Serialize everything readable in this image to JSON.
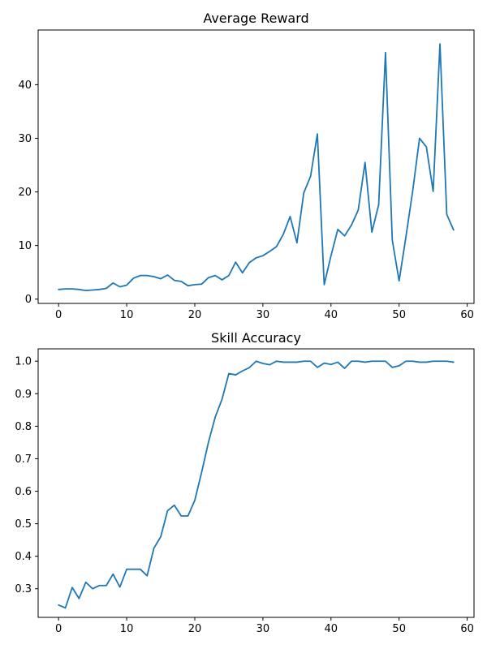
{
  "chart_data": [
    {
      "type": "line",
      "title": "Average Reward",
      "xlabel": "",
      "ylabel": "",
      "xlim": [
        -3,
        61
      ],
      "ylim": [
        -0.8,
        50.2
      ],
      "xticks": [
        0,
        10,
        20,
        30,
        40,
        50,
        60
      ],
      "yticks": [
        0,
        10,
        20,
        30,
        40
      ],
      "grid": false,
      "color": "#1f77b4",
      "x": [
        0,
        1,
        2,
        3,
        4,
        5,
        6,
        7,
        8,
        9,
        10,
        11,
        12,
        13,
        14,
        15,
        16,
        17,
        18,
        19,
        20,
        21,
        22,
        23,
        24,
        25,
        26,
        27,
        28,
        29,
        30,
        31,
        32,
        33,
        34,
        35,
        36,
        37,
        38,
        39,
        40,
        41,
        42,
        43,
        44,
        45,
        46,
        47,
        48,
        49,
        50,
        51,
        52,
        53,
        54,
        55,
        56,
        57,
        58
      ],
      "y": [
        1.8,
        1.9,
        1.9,
        1.8,
        1.6,
        1.7,
        1.8,
        2.0,
        3.0,
        2.3,
        2.6,
        3.9,
        4.4,
        4.4,
        4.2,
        3.8,
        4.5,
        3.5,
        3.3,
        2.5,
        2.7,
        2.8,
        4.0,
        4.4,
        3.6,
        4.4,
        6.9,
        4.9,
        6.8,
        7.7,
        8.1,
        8.9,
        9.8,
        12.1,
        15.4,
        10.5,
        19.8,
        22.9,
        30.8,
        2.7,
        8.1,
        13.0,
        11.8,
        13.8,
        16.6,
        25.5,
        12.5,
        17.6,
        46.0,
        11.0,
        3.4,
        11.6,
        20.2,
        30.0,
        28.4,
        20.1,
        47.6,
        15.8,
        12.9
      ]
    },
    {
      "type": "line",
      "title": "Skill Accuracy",
      "xlabel": "",
      "ylabel": "",
      "xlim": [
        -3,
        61
      ],
      "ylim": [
        0.212,
        1.038
      ],
      "xticks": [
        0,
        10,
        20,
        30,
        40,
        50,
        60
      ],
      "yticks": [
        0.3,
        0.4,
        0.5,
        0.6,
        0.7,
        0.8,
        0.9,
        1.0
      ],
      "grid": false,
      "color": "#1f77b4",
      "x": [
        0,
        1,
        2,
        3,
        4,
        5,
        6,
        7,
        8,
        9,
        10,
        11,
        12,
        13,
        14,
        15,
        16,
        17,
        18,
        19,
        20,
        21,
        22,
        23,
        24,
        25,
        26,
        27,
        28,
        29,
        30,
        31,
        32,
        33,
        34,
        35,
        36,
        37,
        38,
        39,
        40,
        41,
        42,
        43,
        44,
        45,
        46,
        47,
        48,
        49,
        50,
        51,
        52,
        53,
        54,
        55,
        56,
        57,
        58
      ],
      "y": [
        0.25,
        0.241,
        0.304,
        0.27,
        0.32,
        0.3,
        0.31,
        0.31,
        0.345,
        0.305,
        0.36,
        0.36,
        0.36,
        0.34,
        0.425,
        0.46,
        0.54,
        0.557,
        0.524,
        0.524,
        0.572,
        0.658,
        0.75,
        0.828,
        0.883,
        0.962,
        0.958,
        0.97,
        0.98,
        1.0,
        0.993,
        0.989,
        1.0,
        0.997,
        0.997,
        0.997,
        1.0,
        1.0,
        0.981,
        0.994,
        0.99,
        0.997,
        0.978,
        1.0,
        1.0,
        0.997,
        1.0,
        1.0,
        1.0,
        0.981,
        0.986,
        1.0,
        1.0,
        0.997,
        0.997,
        1.0,
        1.0,
        1.0,
        0.997
      ]
    }
  ]
}
